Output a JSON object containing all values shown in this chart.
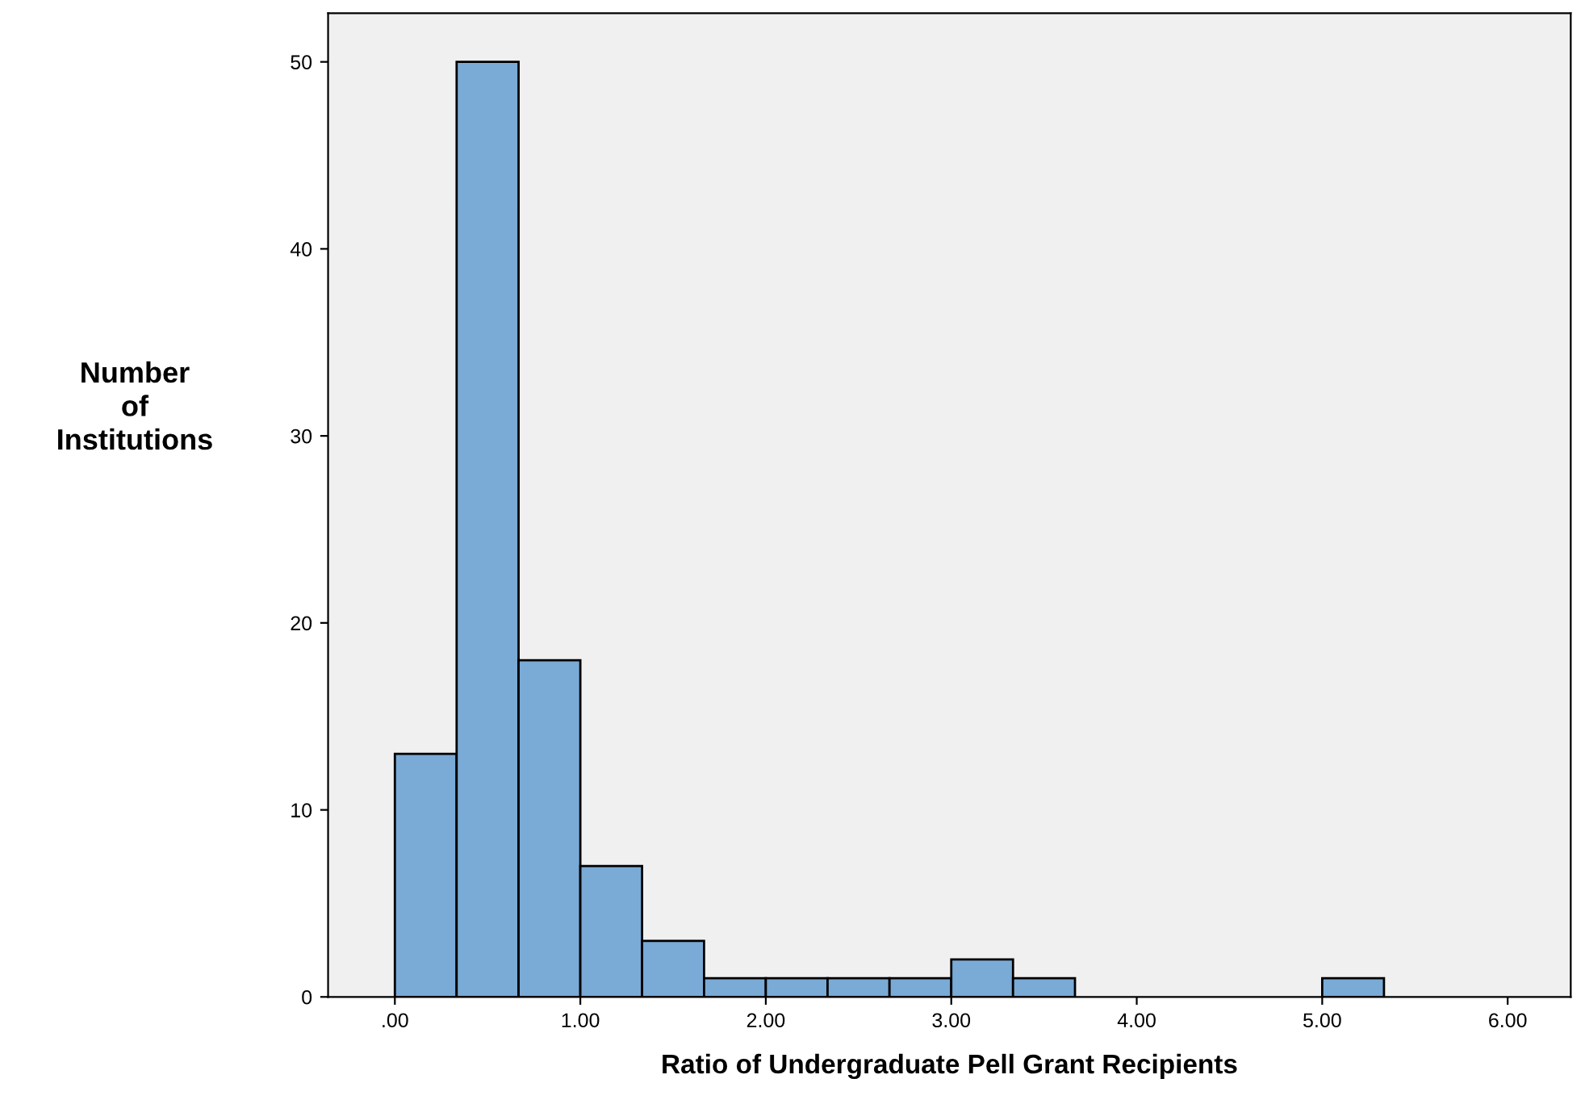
{
  "chart_data": {
    "type": "histogram",
    "xlabel": "Ratio of Undergraduate Pell Grant Recipients",
    "ylabel": "Number\nof\nInstitutions",
    "bins": [
      0,
      0.333,
      0.667,
      1,
      1.333,
      1.667,
      2,
      2.333,
      2.667,
      3,
      3.333,
      3.667,
      4,
      4.333,
      4.667,
      5,
      5.333
    ],
    "values": [
      13,
      50,
      18,
      7,
      3,
      1,
      1,
      1,
      1,
      2,
      1,
      0,
      0,
      0,
      0,
      1
    ],
    "color": "#7aaad6",
    "xlim": [
      -0.36,
      6.34
    ],
    "xticks": [
      {
        "value": 0,
        "label": ".00"
      },
      {
        "value": 1,
        "label": "1.00"
      },
      {
        "value": 2,
        "label": "2.00"
      },
      {
        "value": 3,
        "label": "3.00"
      },
      {
        "value": 4,
        "label": "4.00"
      },
      {
        "value": 5,
        "label": "5.00"
      },
      {
        "value": 6,
        "label": "6.00"
      }
    ],
    "ylim": [
      0,
      52.6
    ],
    "yticks": [
      0,
      10,
      20,
      30,
      40,
      50
    ],
    "grid": false
  }
}
